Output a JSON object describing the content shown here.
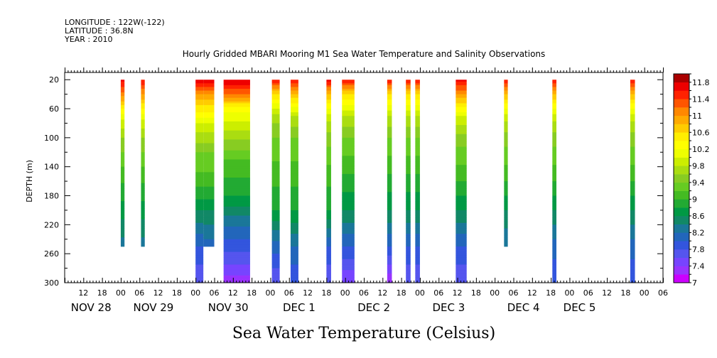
{
  "header": {
    "longitude": "LONGITUDE : 122W(-122)",
    "latitude": "LATITUDE : 36.8N",
    "year": "YEAR : 2010"
  },
  "chart_data": {
    "type": "heatmap",
    "title": "Hourly Gridded MBARI Mooring M1 Sea Water Temperature and Salinity Observations",
    "xlabel": "Sea Water Temperature (Celsius)",
    "ylabel": "DEPTH (m)",
    "x_range_hours": [
      0,
      192
    ],
    "x_start": "2010-11-27T06:00",
    "ylim": [
      300,
      0
    ],
    "y_ticks": [
      20,
      60,
      100,
      140,
      180,
      220,
      260,
      300
    ],
    "x_hour_ticks": [
      {
        "h": 6,
        "label": "12"
      },
      {
        "h": 12,
        "label": "18"
      },
      {
        "h": 18,
        "label": "00"
      },
      {
        "h": 24,
        "label": "06"
      },
      {
        "h": 30,
        "label": "12"
      },
      {
        "h": 36,
        "label": "18"
      },
      {
        "h": 42,
        "label": "00"
      },
      {
        "h": 48,
        "label": "06"
      },
      {
        "h": 54,
        "label": "12"
      },
      {
        "h": 60,
        "label": "18"
      },
      {
        "h": 66,
        "label": "00"
      },
      {
        "h": 72,
        "label": "06"
      },
      {
        "h": 78,
        "label": "12"
      },
      {
        "h": 84,
        "label": "18"
      },
      {
        "h": 90,
        "label": "00"
      },
      {
        "h": 96,
        "label": "06"
      },
      {
        "h": 102,
        "label": "12"
      },
      {
        "h": 108,
        "label": "18"
      },
      {
        "h": 114,
        "label": "00"
      },
      {
        "h": 120,
        "label": "06"
      },
      {
        "h": 126,
        "label": "12"
      },
      {
        "h": 132,
        "label": "18"
      },
      {
        "h": 138,
        "label": "00"
      },
      {
        "h": 144,
        "label": "06"
      },
      {
        "h": 150,
        "label": "12"
      },
      {
        "h": 156,
        "label": "18"
      },
      {
        "h": 162,
        "label": "00"
      },
      {
        "h": 168,
        "label": "06"
      },
      {
        "h": 174,
        "label": "12"
      },
      {
        "h": 180,
        "label": "18"
      },
      {
        "h": 186,
        "label": "00"
      },
      {
        "h": 192,
        "label": "06"
      }
    ],
    "x_date_labels": [
      {
        "h": 2,
        "label": "NOV 28"
      },
      {
        "h": 22,
        "label": "NOV 29"
      },
      {
        "h": 46,
        "label": "NOV 30"
      },
      {
        "h": 70,
        "label": "DEC  1"
      },
      {
        "h": 94,
        "label": "DEC  2"
      },
      {
        "h": 118,
        "label": "DEC  3"
      },
      {
        "h": 142,
        "label": "DEC  4"
      },
      {
        "h": 160,
        "label": "DEC  5"
      }
    ],
    "colorbar": {
      "levels": [
        7,
        7.2,
        7.4,
        7.6,
        7.8,
        8,
        8.2,
        8.4,
        8.6,
        8.8,
        9,
        9.2,
        9.4,
        9.6,
        9.8,
        10,
        10.2,
        10.4,
        10.6,
        10.8,
        11,
        11.2,
        11.4,
        11.6,
        11.8,
        12
      ],
      "labels": [
        7,
        7.4,
        7.8,
        8.2,
        8.6,
        9,
        9.4,
        9.8,
        10.2,
        10.6,
        11,
        11.4,
        11.8
      ],
      "colors": [
        "#cc00ff",
        "#9933ff",
        "#7744ff",
        "#5555ee",
        "#3355dd",
        "#2266bb",
        "#1a7799",
        "#118866",
        "#009944",
        "#22aa33",
        "#44bb22",
        "#66cc22",
        "#88cc22",
        "#aadd11",
        "#ccee00",
        "#eeff00",
        "#ffff00",
        "#ffee00",
        "#ffcc00",
        "#ffaa00",
        "#ff8800",
        "#ff5500",
        "#ff2200",
        "#ee0000",
        "#aa0000"
      ]
    },
    "columns": [
      {
        "x0": 18.0,
        "x1": 19.2,
        "max_depth": 250,
        "profile": [
          [
            20,
            11.7
          ],
          [
            40,
            11.1
          ],
          [
            70,
            10.1
          ],
          [
            100,
            9.6
          ],
          [
            150,
            9.1
          ],
          [
            200,
            8.7
          ],
          [
            250,
            8.3
          ]
        ]
      },
      {
        "x0": 24.5,
        "x1": 25.7,
        "max_depth": 250,
        "profile": [
          [
            20,
            11.6
          ],
          [
            40,
            11.0
          ],
          [
            70,
            10.1
          ],
          [
            100,
            9.6
          ],
          [
            150,
            9.1
          ],
          [
            200,
            8.7
          ],
          [
            250,
            8.3
          ]
        ]
      },
      {
        "x0": 42.0,
        "x1": 44.5,
        "max_depth": 300,
        "profile": [
          [
            20,
            11.8
          ],
          [
            40,
            11.0
          ],
          [
            60,
            10.5
          ],
          [
            80,
            10.0
          ],
          [
            120,
            9.4
          ],
          [
            160,
            9.1
          ],
          [
            200,
            8.6
          ],
          [
            250,
            8.0
          ],
          [
            300,
            7.6
          ]
        ]
      },
      {
        "x0": 44.5,
        "x1": 48.0,
        "max_depth": 250,
        "profile": [
          [
            20,
            11.8
          ],
          [
            40,
            11.0
          ],
          [
            60,
            10.5
          ],
          [
            80,
            10.0
          ],
          [
            120,
            9.4
          ],
          [
            160,
            9.1
          ],
          [
            200,
            8.6
          ],
          [
            250,
            8.1
          ]
        ]
      },
      {
        "x0": 51.0,
        "x1": 59.5,
        "max_depth": 300,
        "profile": [
          [
            20,
            11.8
          ],
          [
            40,
            11.2
          ],
          [
            60,
            10.3
          ],
          [
            90,
            9.8
          ],
          [
            130,
            9.2
          ],
          [
            180,
            8.8
          ],
          [
            230,
            8.1
          ],
          [
            300,
            7.3
          ]
        ]
      },
      {
        "x0": 66.5,
        "x1": 69.0,
        "max_depth": 300,
        "profile": [
          [
            20,
            11.6
          ],
          [
            40,
            10.6
          ],
          [
            70,
            9.7
          ],
          [
            100,
            9.4
          ],
          [
            150,
            9.1
          ],
          [
            200,
            8.8
          ],
          [
            250,
            8.1
          ],
          [
            300,
            7.6
          ]
        ]
      },
      {
        "x0": 72.5,
        "x1": 75.0,
        "max_depth": 300,
        "profile": [
          [
            20,
            11.6
          ],
          [
            40,
            10.8
          ],
          [
            70,
            9.8
          ],
          [
            100,
            9.4
          ],
          [
            150,
            9.1
          ],
          [
            200,
            8.8
          ],
          [
            250,
            8.2
          ],
          [
            300,
            7.8
          ]
        ]
      },
      {
        "x0": 84.0,
        "x1": 85.5,
        "max_depth": 300,
        "profile": [
          [
            20,
            11.7
          ],
          [
            40,
            10.8
          ],
          [
            70,
            9.9
          ],
          [
            100,
            9.5
          ],
          [
            150,
            9.1
          ],
          [
            200,
            8.8
          ],
          [
            250,
            8.0
          ],
          [
            300,
            7.6
          ]
        ]
      },
      {
        "x0": 89.0,
        "x1": 93.0,
        "max_depth": 300,
        "profile": [
          [
            20,
            11.6
          ],
          [
            40,
            10.6
          ],
          [
            70,
            9.8
          ],
          [
            100,
            9.4
          ],
          [
            150,
            9.0
          ],
          [
            200,
            8.6
          ],
          [
            250,
            8.0
          ],
          [
            300,
            7.4
          ]
        ]
      },
      {
        "x0": 103.5,
        "x1": 105.0,
        "max_depth": 300,
        "profile": [
          [
            20,
            11.6
          ],
          [
            40,
            10.6
          ],
          [
            70,
            9.8
          ],
          [
            100,
            9.4
          ],
          [
            150,
            9.0
          ],
          [
            200,
            8.6
          ],
          [
            250,
            8.0
          ],
          [
            300,
            7.2
          ]
        ]
      },
      {
        "x0": 109.5,
        "x1": 111.0,
        "max_depth": 300,
        "profile": [
          [
            20,
            11.6
          ],
          [
            40,
            10.6
          ],
          [
            70,
            9.8
          ],
          [
            100,
            9.4
          ],
          [
            150,
            9.0
          ],
          [
            200,
            8.6
          ],
          [
            250,
            8.0
          ],
          [
            300,
            7.6
          ]
        ]
      },
      {
        "x0": 112.5,
        "x1": 114.0,
        "max_depth": 300,
        "profile": [
          [
            20,
            11.6
          ],
          [
            40,
            10.6
          ],
          [
            70,
            9.8
          ],
          [
            100,
            9.4
          ],
          [
            150,
            9.0
          ],
          [
            200,
            8.6
          ],
          [
            250,
            8.0
          ],
          [
            300,
            7.6
          ]
        ]
      },
      {
        "x0": 125.5,
        "x1": 129.0,
        "max_depth": 300,
        "profile": [
          [
            20,
            11.7
          ],
          [
            40,
            11.0
          ],
          [
            70,
            10.0
          ],
          [
            100,
            9.5
          ],
          [
            150,
            9.1
          ],
          [
            200,
            8.6
          ],
          [
            250,
            8.0
          ],
          [
            300,
            7.6
          ]
        ]
      },
      {
        "x0": 141.0,
        "x1": 142.2,
        "max_depth": 250,
        "profile": [
          [
            20,
            11.6
          ],
          [
            40,
            10.8
          ],
          [
            70,
            9.9
          ],
          [
            100,
            9.5
          ],
          [
            150,
            9.1
          ],
          [
            200,
            8.6
          ],
          [
            250,
            8.2
          ]
        ]
      },
      {
        "x0": 156.5,
        "x1": 157.8,
        "max_depth": 300,
        "profile": [
          [
            20,
            11.6
          ],
          [
            40,
            10.8
          ],
          [
            70,
            9.9
          ],
          [
            100,
            9.5
          ],
          [
            150,
            9.1
          ],
          [
            200,
            8.6
          ],
          [
            250,
            8.1
          ],
          [
            300,
            7.8
          ]
        ]
      },
      {
        "x0": 181.5,
        "x1": 183.0,
        "max_depth": 300,
        "profile": [
          [
            20,
            11.6
          ],
          [
            40,
            10.8
          ],
          [
            70,
            9.9
          ],
          [
            100,
            9.5
          ],
          [
            150,
            9.1
          ],
          [
            200,
            8.6
          ],
          [
            250,
            8.1
          ],
          [
            300,
            7.8
          ]
        ]
      }
    ]
  }
}
